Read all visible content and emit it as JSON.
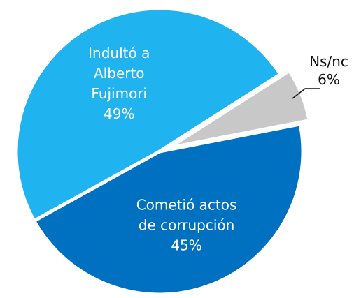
{
  "chart_data": {
    "type": "pie",
    "categories": [
      "Cometió actos de corrupción",
      "Indultó a Alberto Fujimori",
      "Ns/nc"
    ],
    "values": [
      45,
      49,
      6
    ],
    "value_labels": [
      "45%",
      "49%",
      "6%"
    ],
    "colors": [
      "#0070c0",
      "#1fb3ef",
      "#c8c8c8"
    ]
  }
}
